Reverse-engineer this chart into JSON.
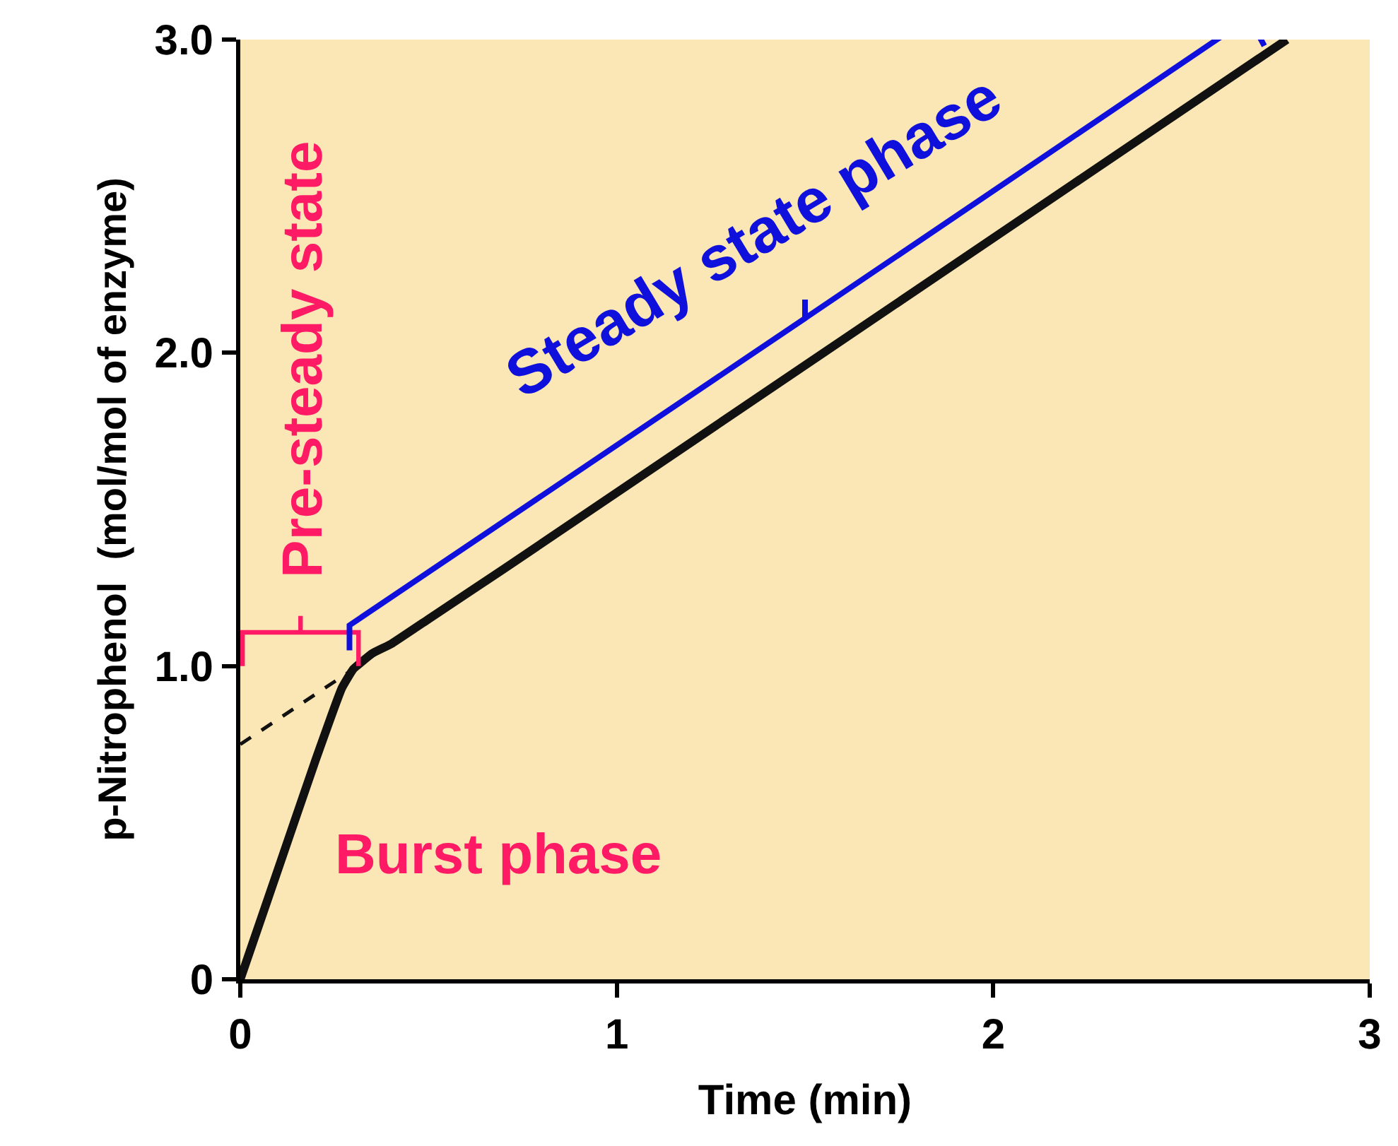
{
  "chart_data": {
    "type": "line",
    "xlabel": "Time (min)",
    "ylabel": "p-Nitrophenol  (mol/mol of enzyme)",
    "xlim": [
      0,
      3
    ],
    "ylim": [
      0,
      3
    ],
    "xticks": [
      0,
      1,
      2,
      3
    ],
    "yticks": [
      0,
      {
        "value": 1,
        "label": "1.0"
      },
      {
        "value": 2,
        "label": "2.0"
      },
      {
        "value": 3,
        "label": "3.0"
      }
    ],
    "grid": false,
    "marker": "none",
    "series": [
      {
        "color": "#111111",
        "line_style": "solid",
        "x": [
          0,
          0.1,
          0.2,
          0.27,
          0.3,
          0.35,
          0.4,
          0.5,
          0.7,
          2.78
        ],
        "values": [
          0,
          0.35,
          0.7,
          0.93,
          0.99,
          1.04,
          1.07,
          1.15,
          1.31,
          3.0
        ]
      },
      {
        "color": "#111111",
        "line_style": "dashed",
        "x": [
          0,
          0.3
        ],
        "values": [
          0.75,
          0.99
        ]
      }
    ],
    "annotations": [
      "Pre-steady state",
      "Steady state phase",
      "Burst phase"
    ]
  }
}
